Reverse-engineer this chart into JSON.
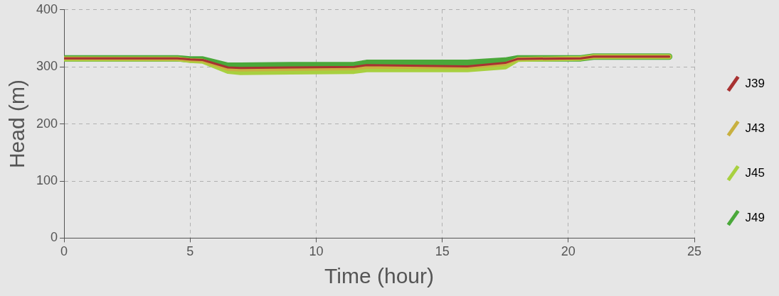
{
  "chart_data": {
    "type": "line",
    "xlabel": "Time (hour)",
    "ylabel": "Head (m)",
    "xlim": [
      0,
      25
    ],
    "xticks": [
      0,
      5,
      10,
      15,
      20,
      25
    ],
    "ylim": [
      0,
      400
    ],
    "yticks": [
      0,
      100,
      200,
      300,
      400
    ],
    "grid": true,
    "legend": "right",
    "marker": "none",
    "line_style": "solid",
    "x": [
      0,
      4.5,
      5,
      5.5,
      6.5,
      7,
      9,
      11.5,
      12,
      16,
      17.5,
      18,
      20.5,
      21,
      24
    ],
    "series": [
      {
        "name": "J39",
        "color": "#a83232",
        "values": [
          315,
          315,
          313,
          312,
          299,
          298,
          299,
          300,
          303,
          301,
          307,
          314,
          315,
          318,
          318
        ]
      },
      {
        "name": "J43",
        "color": "#c8b040",
        "values": [
          315,
          314,
          312,
          311,
          296,
          295,
          296,
          297,
          300,
          299,
          305,
          314,
          315,
          318,
          318
        ]
      },
      {
        "name": "J45",
        "color": "#a8d040",
        "values": [
          314,
          314,
          311,
          310,
          292,
          290,
          291,
          292,
          295,
          295,
          300,
          313,
          315,
          318,
          318
        ]
      },
      {
        "name": "J49",
        "color": "#4aa83a",
        "values": [
          315,
          315,
          313,
          313,
          302,
          302,
          303,
          303,
          307,
          307,
          311,
          315,
          315,
          318,
          318
        ]
      }
    ]
  }
}
